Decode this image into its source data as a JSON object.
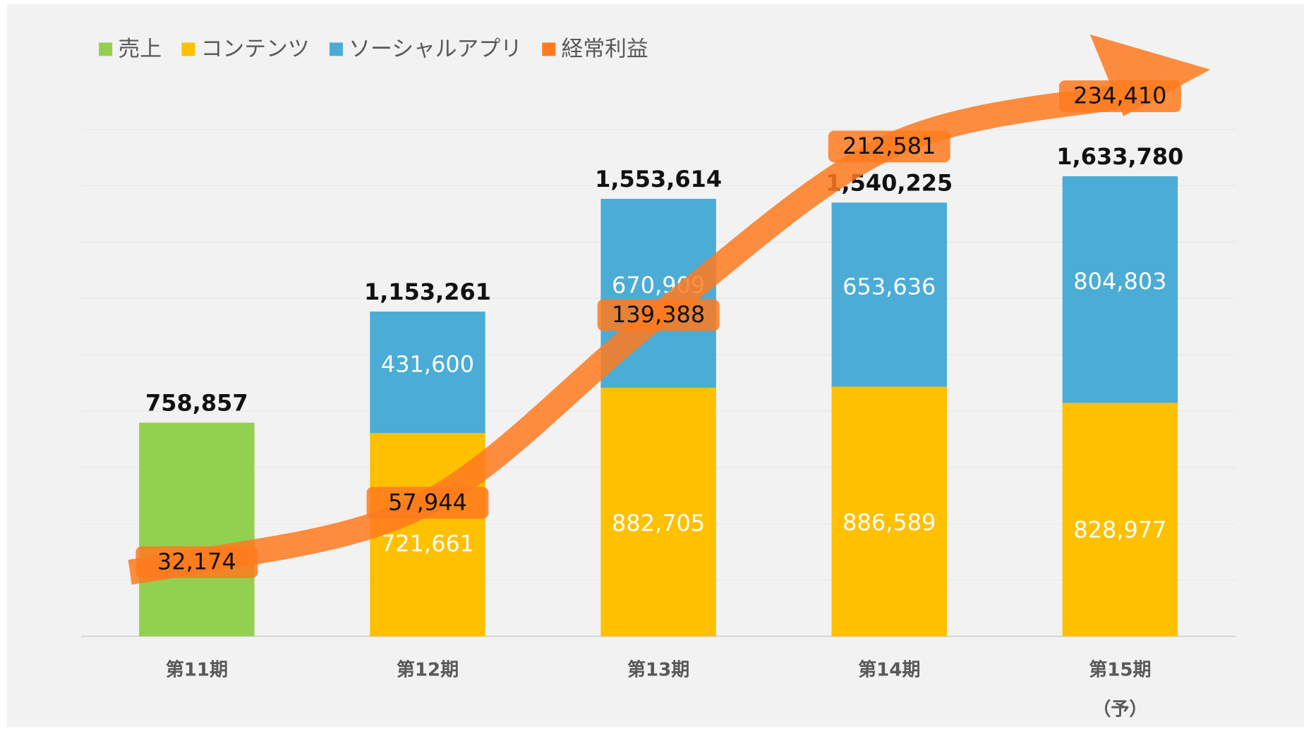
{
  "chart_data": {
    "type": "stacked-bar",
    "categories": [
      "第11期",
      "第12期",
      "第13期",
      "第14期",
      "第15期"
    ],
    "category_notes": [
      null,
      null,
      null,
      null,
      "（予）"
    ],
    "ylim": [
      0,
      1800000
    ],
    "yticks": [
      0,
      200000,
      400000,
      600000,
      800000,
      1000000,
      1200000,
      1400000,
      1600000,
      1800000
    ],
    "show_ytick_labels": false,
    "grid": true,
    "y2lim": [
      0,
      220000
    ],
    "legend": "top-left",
    "series": [
      {
        "name": "売上",
        "color": "#92d050",
        "role": "total",
        "values": [
          758857,
          1153261,
          1553614,
          1540225,
          1633780
        ],
        "value_labels": [
          "758,857",
          "1,153,261",
          "1,553,614",
          "1,540,225",
          "1,633,780"
        ]
      },
      {
        "name": "コンテンツ",
        "color": "#ffc000",
        "values": [
          null,
          721661,
          882705,
          886589,
          828977
        ],
        "value_labels": [
          null,
          "721,661",
          "882,705",
          "886,589",
          "828,977"
        ]
      },
      {
        "name": "ソーシャルアプリ",
        "color": "#4bacd6",
        "values": [
          null,
          431600,
          670909,
          653636,
          804803
        ],
        "value_labels": [
          null,
          "431,600",
          "670,909",
          "653,636",
          "804,803"
        ]
      },
      {
        "name": "経常利益",
        "color": "#ff7a1f",
        "axis": "y2",
        "role": "line",
        "values": [
          32174,
          57944,
          139388,
          212581,
          234410
        ],
        "value_labels": [
          "32,174",
          "57,944",
          "139,388",
          "212,581",
          "234,410"
        ]
      }
    ]
  }
}
